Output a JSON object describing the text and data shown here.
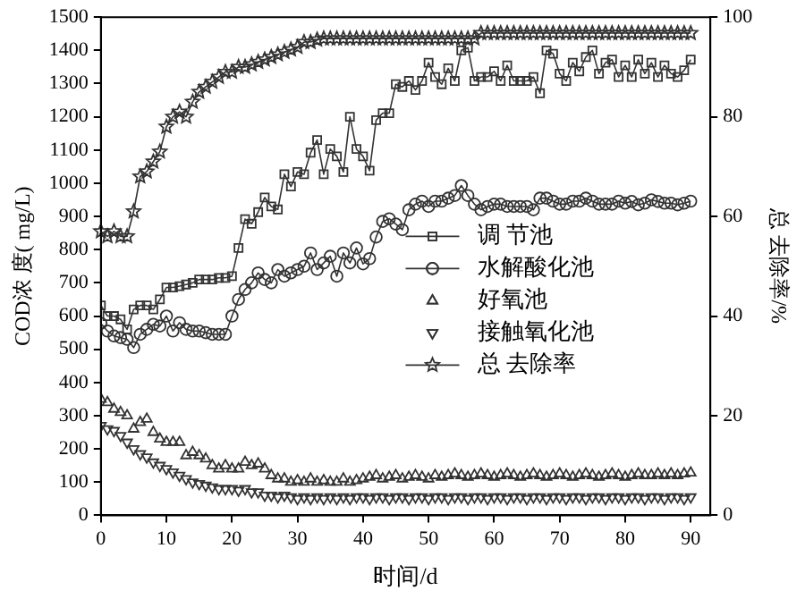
{
  "chart_data": {
    "type": "line",
    "xlabel": "时间/d",
    "ylabel": "COD浓 度( mg/L)",
    "y2label": "总 去除率/%",
    "x": [
      0,
      1,
      2,
      3,
      4,
      5,
      6,
      7,
      8,
      9,
      10,
      11,
      12,
      13,
      14,
      15,
      16,
      17,
      18,
      19,
      20,
      21,
      22,
      23,
      24,
      25,
      26,
      27,
      28,
      29,
      30,
      31,
      32,
      33,
      34,
      35,
      36,
      37,
      38,
      39,
      40,
      41,
      42,
      43,
      44,
      45,
      46,
      47,
      48,
      49,
      50,
      51,
      52,
      53,
      54,
      55,
      56,
      57,
      58,
      59,
      60,
      61,
      62,
      63,
      64,
      65,
      66,
      67,
      68,
      69,
      70,
      71,
      72,
      73,
      74,
      75,
      76,
      77,
      78,
      79,
      80,
      81,
      82,
      83,
      84,
      85,
      86,
      87,
      88,
      89,
      90
    ],
    "xlim": [
      0,
      93
    ],
    "xticks": [
      0,
      10,
      20,
      30,
      40,
      50,
      60,
      70,
      80,
      90
    ],
    "ylim": [
      0,
      1500
    ],
    "yticks": [
      0,
      100,
      200,
      300,
      400,
      500,
      600,
      700,
      800,
      900,
      1000,
      1100,
      1200,
      1300,
      1400,
      1500
    ],
    "y2lim": [
      0,
      100
    ],
    "y2ticks": [
      0,
      20,
      40,
      60,
      80,
      100
    ],
    "grid": false,
    "legend": "right",
    "series": [
      {
        "name": "调 节池",
        "marker": "square",
        "line_style": "solid",
        "color": "#333333",
        "values": [
          632,
          600,
          600,
          590,
          560,
          620,
          632,
          632,
          620,
          650,
          686,
          686,
          690,
          695,
          700,
          710,
          710,
          710,
          715,
          715,
          720,
          805,
          892,
          878,
          913,
          957,
          930,
          921,
          1027,
          990,
          1034,
          1027,
          1092,
          1130,
          1027,
          1103,
          1081,
          1034,
          1200,
          1103,
          1081,
          1038,
          1190,
          1211,
          1211,
          1298,
          1290,
          1308,
          1281,
          1308,
          1363,
          1320,
          1298,
          1346,
          1308,
          1400,
          1408,
          1308,
          1320,
          1320,
          1337,
          1308,
          1355,
          1308,
          1308,
          1308,
          1320,
          1271,
          1400,
          1390,
          1330,
          1308,
          1363,
          1337,
          1380,
          1400,
          1330,
          1363,
          1372,
          1320,
          1355,
          1320,
          1372,
          1330,
          1363,
          1320,
          1355,
          1330,
          1320,
          1340,
          1372
        ]
      },
      {
        "name": "水解酸化池",
        "marker": "circle",
        "line_style": "solid",
        "color": "#333333",
        "values": [
          578,
          555,
          540,
          535,
          530,
          505,
          545,
          560,
          575,
          570,
          600,
          555,
          580,
          560,
          555,
          555,
          550,
          545,
          545,
          545,
          600,
          650,
          680,
          700,
          730,
          710,
          700,
          740,
          720,
          730,
          740,
          750,
          790,
          740,
          760,
          780,
          720,
          790,
          760,
          805,
          757,
          773,
          838,
          885,
          893,
          877,
          860,
          920,
          937,
          946,
          930,
          946,
          946,
          955,
          963,
          993,
          963,
          937,
          920,
          930,
          937,
          937,
          930,
          930,
          930,
          930,
          920,
          955,
          955,
          946,
          937,
          937,
          946,
          946,
          955,
          946,
          937,
          937,
          937,
          946,
          940,
          945,
          935,
          940,
          950,
          945,
          940,
          940,
          935,
          940,
          946
        ]
      },
      {
        "name": "好氧池",
        "type": "scatter",
        "marker": "triangle",
        "color": "#333333",
        "values": [
          350,
          340,
          320,
          310,
          300,
          260,
          280,
          290,
          250,
          230,
          220,
          220,
          220,
          180,
          190,
          180,
          170,
          150,
          140,
          150,
          140,
          140,
          160,
          150,
          155,
          140,
          120,
          110,
          110,
          100,
          105,
          100,
          110,
          100,
          105,
          100,
          100,
          110,
          100,
          105,
          110,
          115,
          120,
          110,
          115,
          120,
          110,
          115,
          120,
          115,
          110,
          120,
          115,
          120,
          125,
          120,
          115,
          120,
          125,
          120,
          115,
          120,
          125,
          120,
          115,
          120,
          125,
          120,
          115,
          120,
          125,
          120,
          115,
          120,
          125,
          120,
          115,
          120,
          125,
          120,
          115,
          120,
          125,
          120,
          120,
          125,
          120,
          125,
          120,
          125,
          128
        ]
      },
      {
        "name": "接触氧化池",
        "type": "scatter",
        "marker": "triangle-down",
        "color": "#333333",
        "values": [
          270,
          260,
          255,
          240,
          220,
          200,
          185,
          175,
          160,
          150,
          140,
          130,
          120,
          110,
          100,
          95,
          90,
          85,
          80,
          80,
          80,
          75,
          80,
          70,
          70,
          60,
          60,
          55,
          60,
          55,
          50,
          55,
          50,
          55,
          50,
          55,
          50,
          55,
          50,
          55,
          55,
          50,
          55,
          55,
          50,
          55,
          55,
          50,
          55,
          55,
          50,
          55,
          55,
          50,
          55,
          55,
          50,
          55,
          55,
          50,
          55,
          55,
          50,
          55,
          55,
          50,
          55,
          55,
          50,
          55,
          55,
          50,
          55,
          55,
          50,
          55,
          55,
          50,
          55,
          55,
          50,
          55,
          55,
          50,
          55,
          55,
          50,
          55,
          55,
          50,
          55
        ]
      },
      {
        "name": "总 去除率",
        "axis": "y2",
        "marker": "star",
        "line_style": "solid",
        "color": "#333333",
        "values": [
          57,
          56,
          57,
          56,
          56,
          61,
          68,
          69,
          71,
          73,
          78,
          80,
          81,
          80,
          83,
          85,
          86,
          87,
          88,
          89,
          89,
          90,
          90,
          90.5,
          91,
          91.5,
          92,
          92.5,
          93,
          93.5,
          94,
          95,
          95,
          95.5,
          95.7,
          95.7,
          95.7,
          95.7,
          95.7,
          95.7,
          95.7,
          95.7,
          95.7,
          95.7,
          95.7,
          95.7,
          95.7,
          95.7,
          95.7,
          95.7,
          95.7,
          95.7,
          95.7,
          95.7,
          95.7,
          95.7,
          95.7,
          95.7,
          96.8,
          96.8,
          96.8,
          96.8,
          96.8,
          96.8,
          96.8,
          96.8,
          96.8,
          96.8,
          96.8,
          96.8,
          96.8,
          96.8,
          96.8,
          96.8,
          96.8,
          96.8,
          96.8,
          96.8,
          96.8,
          96.8,
          96.8,
          96.8,
          96.8,
          96.8,
          96.8,
          96.8,
          96.8,
          96.8,
          96.8,
          96.8,
          96.8
        ]
      }
    ]
  }
}
